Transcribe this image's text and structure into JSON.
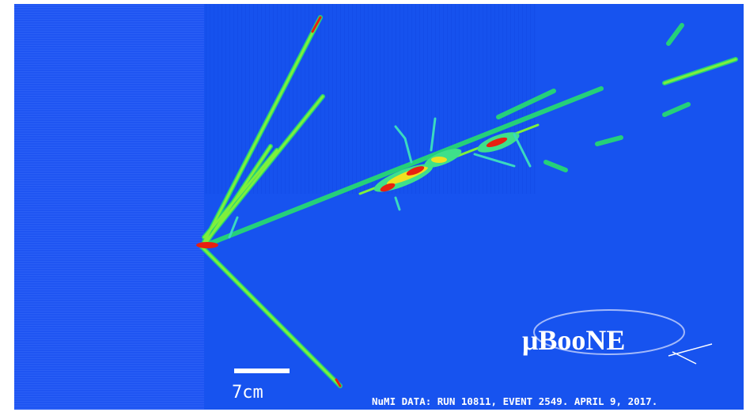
{
  "scale_bar_label": "7cm",
  "logo": "μBooNE",
  "caption": "NuMI DATA: RUN 10811, EVENT 2549. APRIL 9, 2017."
}
